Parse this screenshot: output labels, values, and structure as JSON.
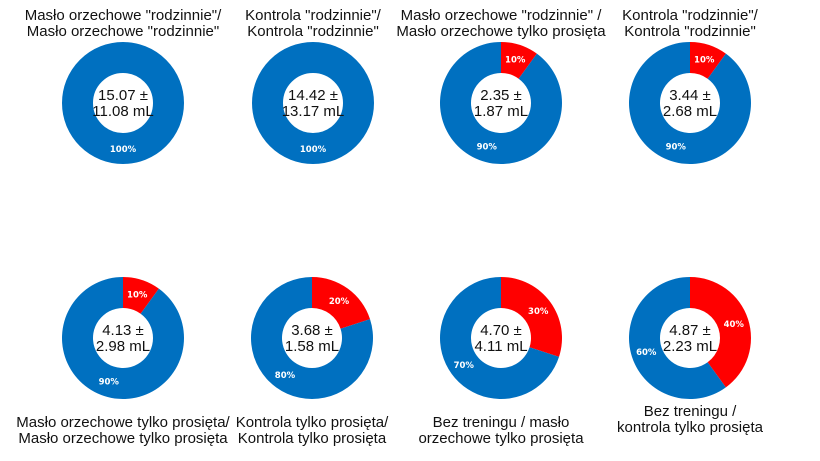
{
  "colors": {
    "blue": "#0070C0",
    "red": "#FF0000",
    "label": "#ffffff"
  },
  "chart_data": [
    {
      "type": "donut",
      "title": [
        "Masło orzechowe \"rodzinnie\"/",
        "Masło orzechowe \"rodzinnie\""
      ],
      "center_text": [
        "15.07 ±",
        "11.08 mL"
      ],
      "values": [
        0,
        100
      ],
      "labels": [
        "",
        "100%"
      ]
    },
    {
      "type": "donut",
      "title": [
        "Kontrola \"rodzinnie\"/",
        "Kontrola \"rodzinnie\""
      ],
      "center_text": [
        "14.42 ±",
        "13.17 mL"
      ],
      "values": [
        0,
        100
      ],
      "labels": [
        "",
        "100%"
      ]
    },
    {
      "type": "donut",
      "title": [
        "Masło orzechowe \"rodzinnie\" /",
        "Masło orzechowe tylko prosięta"
      ],
      "center_text": [
        "2.35 ±",
        "1.87 mL"
      ],
      "values": [
        10,
        90
      ],
      "labels": [
        "10%",
        "90%"
      ]
    },
    {
      "type": "donut",
      "title": [
        "Kontrola \"rodzinnie\"/",
        "Kontrola \"rodzinnie\""
      ],
      "center_text": [
        "3.44 ±",
        "2.68 mL"
      ],
      "values": [
        10,
        90
      ],
      "labels": [
        "10%",
        "90%"
      ]
    },
    {
      "type": "donut",
      "title": [
        "Masło orzechowe tylko prosięta/",
        "Masło orzechowe tylko prosięta"
      ],
      "center_text": [
        "4.13 ±",
        "2.98 mL"
      ],
      "values": [
        10,
        90
      ],
      "labels": [
        "10%",
        "90%"
      ]
    },
    {
      "type": "donut",
      "title": [
        "Kontrola tylko prosięta/",
        "Kontrola tylko prosięta"
      ],
      "center_text": [
        "3.68 ±",
        "1.58 mL"
      ],
      "values": [
        20,
        80
      ],
      "labels": [
        "20%",
        "80%"
      ]
    },
    {
      "type": "donut",
      "title": [
        "Bez treningu / masło",
        "orzechowe tylko prosięta"
      ],
      "center_text": [
        "4.70 ±",
        "4.11 mL"
      ],
      "values": [
        30,
        70
      ],
      "labels": [
        "30%",
        "70%"
      ]
    },
    {
      "type": "donut",
      "title": [
        "Bez treningu /",
        "kontrola tylko prosięta"
      ],
      "center_text": [
        "4.87 ±",
        "2.23 mL"
      ],
      "values": [
        40,
        60
      ],
      "labels": [
        "40%",
        "60%"
      ]
    }
  ]
}
